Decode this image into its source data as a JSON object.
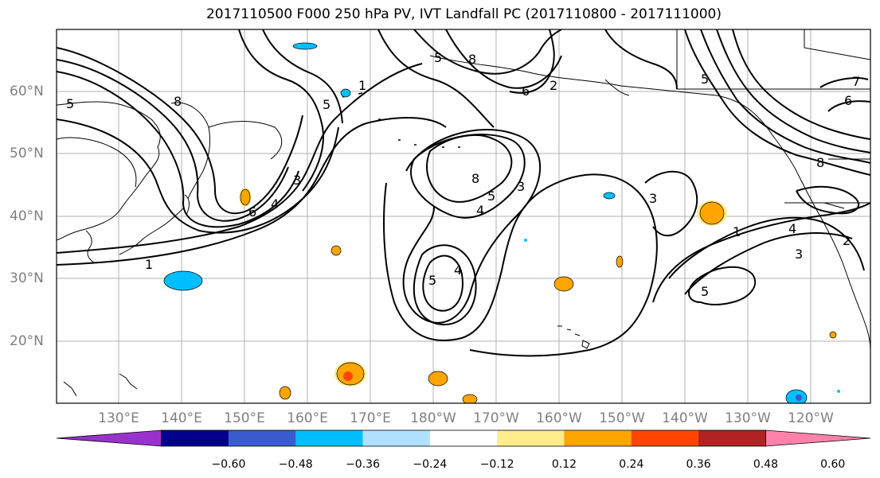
{
  "title": "2017110500 F000 250 hPa PV, IVT Landfall PC (2017110800 - 2017111000)",
  "lat_labels": [
    "60°N",
    "50°N",
    "40°N",
    "30°N",
    "20°N"
  ],
  "lon_labels": [
    "130°E",
    "140°E",
    "150°E",
    "160°E",
    "170°E",
    "180°W",
    "170°W",
    "160°W",
    "150°W",
    "140°W",
    "130°W",
    "120°W"
  ],
  "colorbar": {
    "colors": [
      "#9932CC",
      "#00008B",
      "#3A5BCD",
      "#00BFFF",
      "#B0E2FF",
      "#FFFFFF",
      "#FFEC8B",
      "#FFA500",
      "#FF4500",
      "#B22222",
      "#FF82AB"
    ],
    "tick_labels": [
      "−0.60",
      "−0.48",
      "−0.36",
      "−0.24",
      "−0.12",
      "0.12",
      "0.24",
      "0.36",
      "0.48",
      "0.60"
    ]
  },
  "contour_labels": [
    "1",
    "2",
    "3",
    "4",
    "5",
    "6",
    "7",
    "8"
  ],
  "colors": {
    "contour": "#000000",
    "coast": "#000000",
    "grid": "#808080",
    "positive_fill": "#FFA500",
    "positive_light": "#FFEC8B",
    "positive_strong": "#FF4500",
    "negative_fill": "#00BFFF",
    "negative_light": "#B0E2FF"
  }
}
